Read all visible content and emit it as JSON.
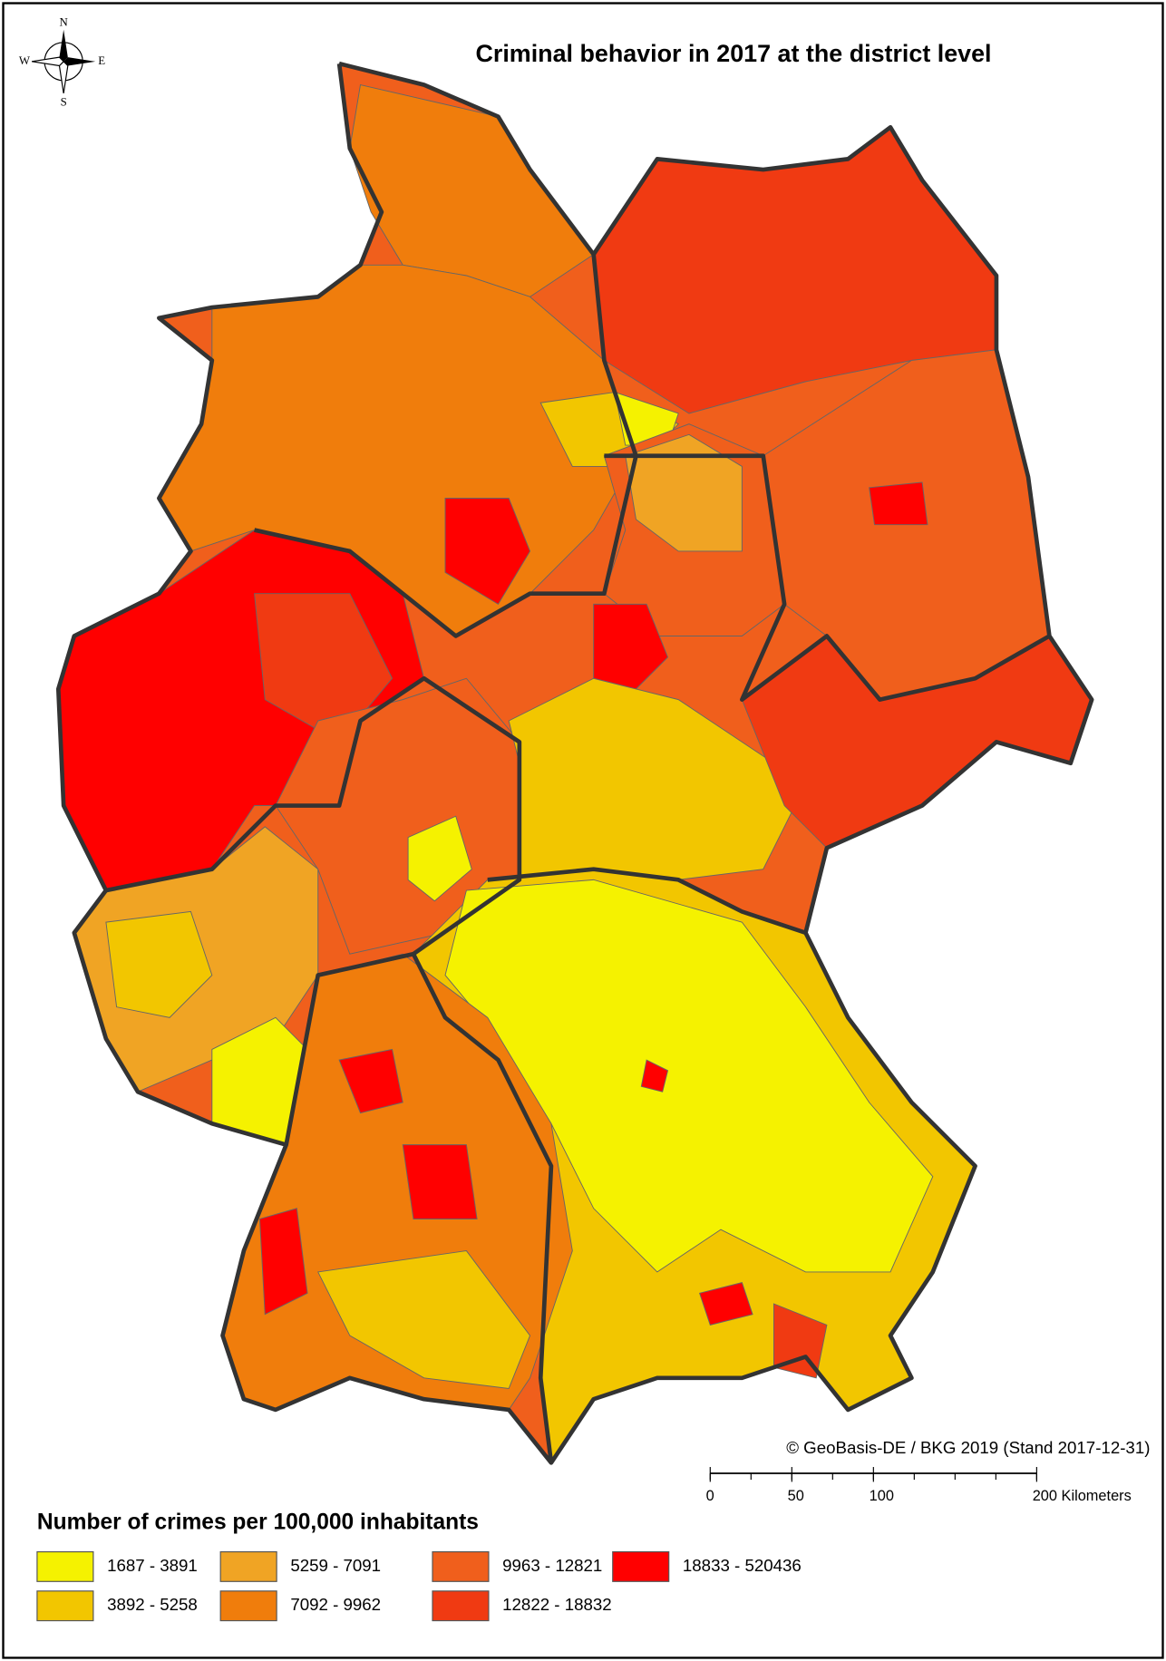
{
  "title": "Criminal behavior in 2017 at the district level",
  "compass": {
    "north": "N",
    "south": "S",
    "east": "E",
    "west": "W"
  },
  "attribution": "© GeoBasis-DE / BKG 2019 (Stand 2017-12-31)",
  "scale_bar": {
    "ticks": [
      0,
      50,
      100,
      {
        "value": 200,
        "label": "200 Kilometers"
      }
    ]
  },
  "legend": {
    "title": "Number of crimes per 100,000 inhabitants",
    "classes": [
      {
        "label": "1687 - 3891",
        "color": "#f5f200"
      },
      {
        "label": "3892 - 5258",
        "color": "#f2c600"
      },
      {
        "label": "5259 - 7091",
        "color": "#f0a424"
      },
      {
        "label": "7092 - 9962",
        "color": "#f07d0c"
      },
      {
        "label": "9963 - 12821",
        "color": "#f05f1c"
      },
      {
        "label": "12822 - 18832",
        "color": "#f03a12"
      },
      {
        "label": "18833 - 520436",
        "color": "#ff0000"
      }
    ]
  }
}
